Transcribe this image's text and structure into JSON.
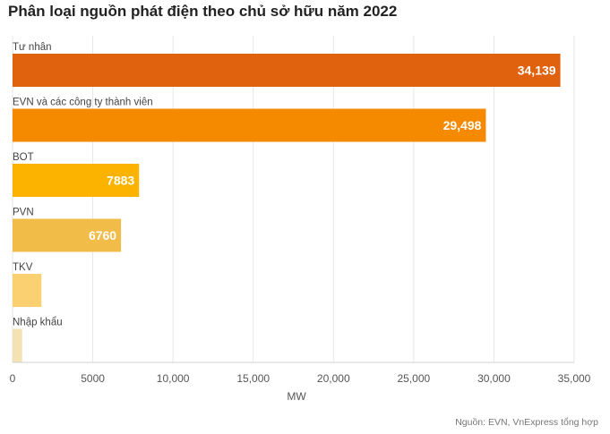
{
  "chart_data": {
    "type": "bar",
    "orientation": "horizontal",
    "title": "Phân loại nguồn phát điện theo chủ sở hữu năm 2022",
    "categories": [
      "Tư nhân",
      "EVN và các công ty thành viên",
      "BOT",
      "PVN",
      "TKV",
      "Nhập khẩu"
    ],
    "values": [
      34139,
      29498,
      7883,
      6760,
      1800,
      600
    ],
    "value_labels": [
      "34,139",
      "29,498",
      "7883",
      "6760",
      "",
      ""
    ],
    "bar_colors": [
      "#E0620F",
      "#F58A00",
      "#FBB300",
      "#F2BC48",
      "#FBD070",
      "#F5E2B4"
    ],
    "xlabel": "MW",
    "ylabel": "",
    "xlim": [
      0,
      35000
    ],
    "x_ticks": [
      0,
      5000,
      10000,
      15000,
      20000,
      25000,
      30000,
      35000
    ],
    "x_tick_labels": [
      "0",
      "5000",
      "10,000",
      "15,000",
      "20,000",
      "25,000",
      "30,000",
      "35,000"
    ],
    "grid": "vertical",
    "legend": "none",
    "source": "Nguồn: EVN, VnExpress tổng hợp"
  }
}
